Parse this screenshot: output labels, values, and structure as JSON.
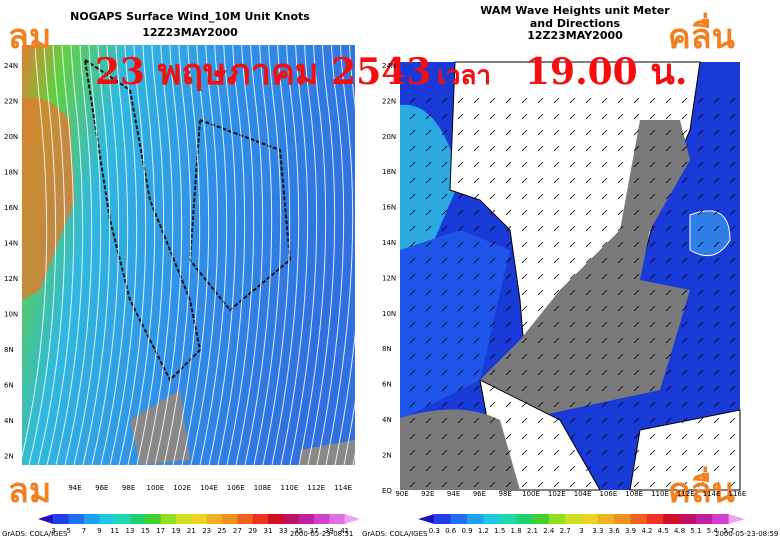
{
  "overlay": {
    "wind_top": "ลม",
    "wind_bottom": "ลม",
    "wave_top": "คลื่น",
    "wave_bottom": "คลื่น",
    "date": "23 พฤษภาคม 2543",
    "time_word": "เวลา",
    "time": "19.00 น."
  },
  "left_panel": {
    "title": "NOGAPS Surface Wind_10M Unit Knots",
    "subtitle": "12Z23MAY2000",
    "lat_labels": [
      "24N",
      "22N",
      "20N",
      "18N",
      "16N",
      "14N",
      "12N",
      "10N",
      "8N",
      "6N",
      "4N",
      "2N"
    ],
    "lon_labels": [
      "94E",
      "96E",
      "98E",
      "100E",
      "102E",
      "104E",
      "106E",
      "108E",
      "110E",
      "112E",
      "114E"
    ],
    "colorbar_labels": [
      "3",
      "5",
      "7",
      "9",
      "11",
      "13",
      "15",
      "17",
      "19",
      "21",
      "23",
      "25",
      "27",
      "29",
      "31",
      "33",
      "35",
      "37",
      "39",
      "41"
    ],
    "colors": [
      "#1a10c8",
      "#2040e8",
      "#2070f0",
      "#20a0f0",
      "#20c8e0",
      "#20d8b0",
      "#20d070",
      "#40d030",
      "#90e020",
      "#d0e020",
      "#f0d020",
      "#f0b020",
      "#f09020",
      "#f06020",
      "#f03020",
      "#d01020",
      "#c01060",
      "#c020a0",
      "#d040d0",
      "#e070e0",
      "#f0a0f0"
    ],
    "credit": "GrADS: COLA/IGES",
    "timestamp": "2000-05-23-08:51"
  },
  "right_panel": {
    "title": "WAM Wave Heights unit Meter",
    "subtitle_1": "and Directions",
    "subtitle_2": "12Z23MAY2000",
    "lat_labels": [
      "24N",
      "22N",
      "20N",
      "18N",
      "16N",
      "14N",
      "12N",
      "10N",
      "8N",
      "6N",
      "4N",
      "2N",
      "EQ"
    ],
    "lon_labels": [
      "90E",
      "92E",
      "94E",
      "96E",
      "98E",
      "100E",
      "102E",
      "104E",
      "106E",
      "108E",
      "110E",
      "112E",
      "114E",
      "116E"
    ],
    "colorbar_labels": [
      "0.3",
      "0.6",
      "0.9",
      "1.2",
      "1.5",
      "1.8",
      "2.1",
      "2.4",
      "2.7",
      "3",
      "3.3",
      "3.6",
      "3.9",
      "4.2",
      "4.5",
      "4.8",
      "5.1",
      "5.4",
      "5.7"
    ],
    "colors": [
      "#1a10c8",
      "#2040e8",
      "#2070f0",
      "#20a0f0",
      "#20c8e0",
      "#20d8b0",
      "#20d070",
      "#40d030",
      "#90e020",
      "#d0e020",
      "#f0d020",
      "#f0b020",
      "#f09020",
      "#f06020",
      "#f03020",
      "#d01020",
      "#c01060",
      "#c020a0",
      "#d040d0",
      "#f0a0f0"
    ],
    "credit": "GrADS: COLA/IGES",
    "timestamp": "2000-05-23-08:59"
  }
}
